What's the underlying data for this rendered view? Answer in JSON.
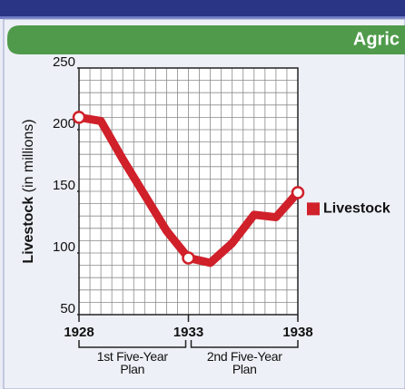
{
  "header": {
    "title": "Agric"
  },
  "chart_data": {
    "type": "line",
    "ylabel": [
      "Livestock",
      "(in millions)"
    ],
    "x": [
      1928,
      1929,
      1930,
      1931,
      1932,
      1933,
      1934,
      1935,
      1936,
      1937,
      1938
    ],
    "series": [
      {
        "name": "Livestock",
        "color": "#d0202a",
        "values": [
          210,
          207,
          176,
          147,
          118,
          96,
          92,
          108,
          131,
          129,
          149
        ]
      }
    ],
    "xlim": [
      1928,
      1938
    ],
    "xticks": [
      1928,
      1933,
      1938
    ],
    "ylim": [
      50,
      250
    ],
    "yticks": [
      50,
      100,
      150,
      200,
      250
    ],
    "grid": true,
    "legend": "right",
    "annotations": [
      {
        "text": "1st Five-Year Plan",
        "from": 1928,
        "to": 1933
      },
      {
        "text": "2nd Five-Year Plan",
        "from": 1933,
        "to": 1938
      }
    ]
  }
}
